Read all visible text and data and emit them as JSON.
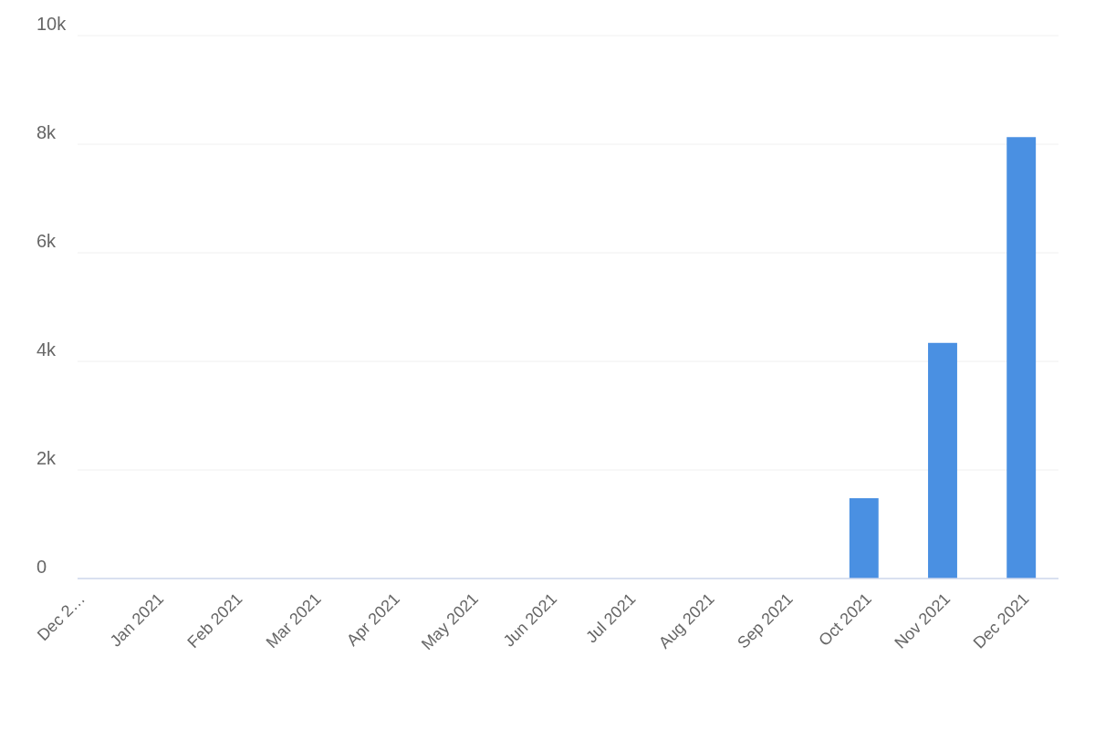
{
  "chart_data": {
    "type": "bar",
    "categories": [
      "Dec 2…",
      "Jan 2021",
      "Feb 2021",
      "Mar 2021",
      "Apr 2021",
      "May 2021",
      "Jun 2021",
      "Jul 2021",
      "Aug 2021",
      "Sep 2021",
      "Oct 2021",
      "Nov 2021",
      "Dec 2021"
    ],
    "values": [
      0,
      0,
      0,
      0,
      0,
      0,
      0,
      0,
      0,
      0,
      1480,
      4340,
      8130
    ],
    "color": "#4a90e2",
    "ylim": [
      0,
      10000
    ],
    "yticks": [
      {
        "value": 0,
        "label": "0"
      },
      {
        "value": 2000,
        "label": "2k"
      },
      {
        "value": 4000,
        "label": "4k"
      },
      {
        "value": 6000,
        "label": "6k"
      },
      {
        "value": 8000,
        "label": "8k"
      },
      {
        "value": 10000,
        "label": "10k"
      }
    ],
    "grid": "y"
  }
}
